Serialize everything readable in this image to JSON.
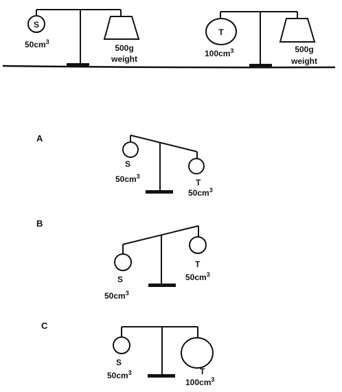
{
  "top": {
    "left_balance": {
      "object_letter": "S",
      "object_volume": "50cm",
      "object_volume_exp": "3",
      "weight_mass": "500g",
      "weight_word": "weight"
    },
    "right_balance": {
      "object_letter": "T",
      "object_volume": "100cm",
      "object_volume_exp": "3",
      "weight_mass": "500g",
      "weight_word": "weight"
    }
  },
  "options": [
    {
      "letter": "A",
      "left_letter": "S",
      "left_volume": "50cm",
      "left_exp": "3",
      "right_letter": "T",
      "right_volume": "50cm",
      "right_exp": "3"
    },
    {
      "letter": "B",
      "left_letter": "S",
      "left_volume": "50cm",
      "left_exp": "3",
      "right_letter": "T",
      "right_volume": "50cm",
      "right_exp": "3"
    },
    {
      "letter": "C",
      "left_letter": "S",
      "left_volume": "50cm",
      "left_exp": "3",
      "right_letter": "T",
      "right_volume": "100cm",
      "right_exp": "3"
    }
  ]
}
